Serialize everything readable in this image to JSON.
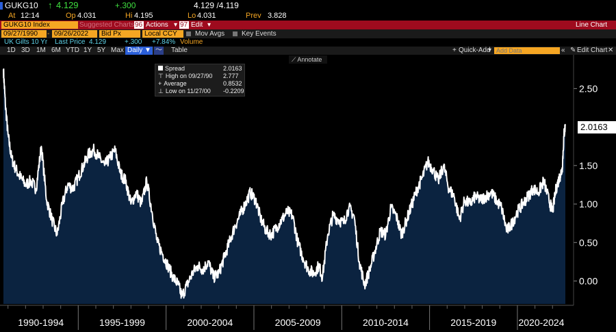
{
  "header": {
    "ticker": "GUKG10",
    "arrow": "↑",
    "last": "4.129",
    "change": "+.300",
    "bidask": "4.129 /4.119",
    "at_label": "At",
    "time": "12:14",
    "op_label": "Op",
    "open": "4.031",
    "hi_label": "Hi",
    "high": "4.195",
    "lo_label": "Lo",
    "low": "4.031",
    "prev_label": "Prev",
    "prev": "3.828"
  },
  "toolbar": {
    "security": "GUKG10 Index",
    "suggested": "Suggested Charts",
    "actions_num": "96",
    "actions": "Actions",
    "edit_num": "97",
    "edit": "Edit",
    "chart_type": "Line Chart"
  },
  "params": {
    "start_date": "09/27/1990",
    "end_date": "09/26/2022",
    "field": "Bid Px",
    "currency": "Local CCY",
    "mov_avgs": "Mov Avgs",
    "key_events": "Key Events"
  },
  "info": {
    "name": "UK Gilts 10 Yr",
    "last_label": "Last Price",
    "last_value": "4.129",
    "change": "+.300",
    "pct": "+7.84%",
    "volume": "Volume"
  },
  "range_tabs": [
    "1D",
    "3D",
    "1M",
    "6M",
    "YTD",
    "1Y",
    "5Y",
    "Max"
  ],
  "range_selected": "Daily",
  "table_label": "Table",
  "right_tools": {
    "quick_add": "Quick-Add",
    "add_data_placeholder": "Add Data",
    "edit_chart": "Edit Chart"
  },
  "annotate": "Annotate",
  "legend": {
    "rows": [
      {
        "label": "Spread",
        "value": "2.0163"
      },
      {
        "label": "High on 09/27/90",
        "value": "2.777"
      },
      {
        "label": "Average",
        "value": "0.8532"
      },
      {
        "label": "Low on 11/27/00",
        "value": "-0.2209"
      }
    ]
  },
  "last_value_tag": "2.0163",
  "colors": {
    "accent": "#f5a623",
    "bar_red": "#9e0b1e",
    "fill": "#0b2340",
    "line": "#ffffff",
    "up": "#3fdf3f"
  },
  "chart_data": {
    "type": "area",
    "title": "",
    "xlabel": "",
    "ylabel": "",
    "x_range": [
      1990.74,
      2022.73
    ],
    "ylim": [
      -0.28,
      2.85
    ],
    "yticks": [
      "0.00",
      "0.50",
      "1.00",
      "1.50",
      "2.50"
    ],
    "ytick_values": [
      0.0,
      0.5,
      1.0,
      1.5,
      2.5
    ],
    "x_categories": [
      "1990-1994",
      "1995-1999",
      "2000-2004",
      "2005-2009",
      "2010-2014",
      "2015-2019",
      "2020-2024"
    ],
    "x_bounds": [
      1990.74,
      1995.0,
      2000.0,
      2005.0,
      2010.0,
      2015.0,
      2020.0,
      2022.73
    ],
    "series": [
      {
        "x": [
          1990.74,
          1990.85,
          1991.0,
          1991.2,
          1991.45,
          1991.7,
          1992.0,
          1992.3,
          1992.6,
          1992.9,
          1993.2,
          1993.5,
          1993.8,
          1994.1,
          1994.4,
          1994.7,
          1995.0,
          1995.3,
          1995.6,
          1995.9,
          1996.2,
          1996.5,
          1996.8,
          1997.1,
          1997.4,
          1997.7,
          1998.0,
          1998.3,
          1998.6,
          1998.9,
          1999.2,
          1999.5,
          1999.8,
          2000.1,
          2000.4,
          2000.7,
          2000.9,
          2001.2,
          2001.5,
          2001.8,
          2002.1,
          2002.4,
          2002.7,
          2003.0,
          2003.3,
          2003.6,
          2003.9,
          2004.2,
          2004.5,
          2004.8,
          2005.1,
          2005.4,
          2005.7,
          2006.0,
          2006.3,
          2006.6,
          2006.9,
          2007.2,
          2007.5,
          2007.8,
          2008.1,
          2008.4,
          2008.7,
          2008.9,
          2009.2,
          2009.5,
          2009.8,
          2010.1,
          2010.4,
          2010.7,
          2011.0,
          2011.3,
          2011.6,
          2011.9,
          2012.2,
          2012.5,
          2012.8,
          2013.1,
          2013.4,
          2013.7,
          2014.0,
          2014.3,
          2014.6,
          2014.9,
          2015.2,
          2015.5,
          2015.8,
          2016.1,
          2016.4,
          2016.7,
          2017.0,
          2017.3,
          2017.6,
          2017.9,
          2018.2,
          2018.5,
          2018.8,
          2019.1,
          2019.4,
          2019.7,
          2020.0,
          2020.3,
          2020.6,
          2020.9,
          2021.2,
          2021.5,
          2021.8,
          2022.0,
          2022.2,
          2022.4,
          2022.55,
          2022.65,
          2022.73
        ],
        "y": [
          2.75,
          2.3,
          1.9,
          1.6,
          1.45,
          1.35,
          1.25,
          1.3,
          1.2,
          1.75,
          1.05,
          0.8,
          0.6,
          1.0,
          1.25,
          1.2,
          1.35,
          1.5,
          1.65,
          1.7,
          1.6,
          1.5,
          1.6,
          1.7,
          1.4,
          1.3,
          1.0,
          1.15,
          1.0,
          1.3,
          0.9,
          0.5,
          0.35,
          0.2,
          0.05,
          -0.05,
          -0.2,
          -0.05,
          0.1,
          0.2,
          0.15,
          0.25,
          0.05,
          0.1,
          0.3,
          0.5,
          0.7,
          0.85,
          1.0,
          1.15,
          1.05,
          0.8,
          0.65,
          0.6,
          0.7,
          0.8,
          0.9,
          0.85,
          0.5,
          0.3,
          0.15,
          0.1,
          0.2,
          0.05,
          0.6,
          0.85,
          0.8,
          0.75,
          0.95,
          0.85,
          0.25,
          -0.05,
          0.15,
          0.4,
          0.65,
          0.6,
          0.95,
          0.85,
          0.6,
          0.8,
          1.0,
          1.2,
          1.35,
          1.55,
          1.45,
          1.3,
          1.5,
          1.2,
          1.1,
          0.8,
          1.05,
          1.0,
          1.1,
          1.05,
          1.1,
          1.15,
          1.05,
          0.95,
          0.65,
          0.75,
          0.9,
          1.0,
          1.1,
          1.2,
          1.15,
          1.3,
          1.05,
          0.9,
          1.2,
          1.35,
          1.45,
          1.9,
          2.0163
        ]
      }
    ]
  }
}
